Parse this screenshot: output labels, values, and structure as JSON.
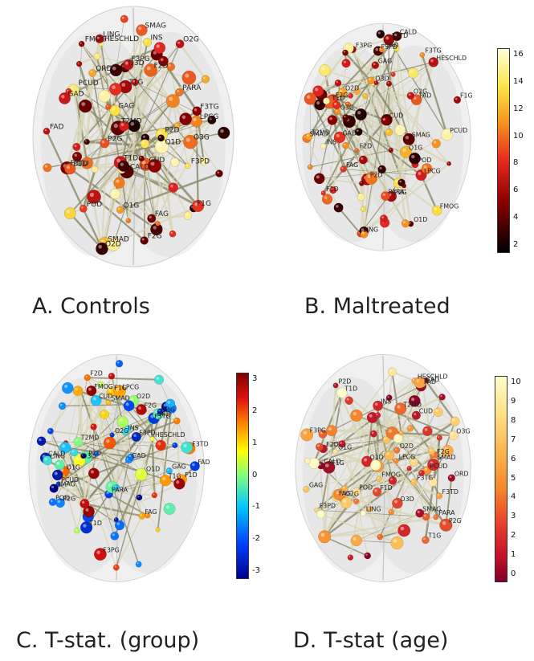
{
  "panels": [
    {
      "id": "A",
      "caption": "A. Controls",
      "colormap": "hot",
      "colorbar": null
    },
    {
      "id": "B",
      "caption": "B. Maltreated",
      "colormap": "hot",
      "colorbar": {
        "ticks": [
          "16",
          "14",
          "12",
          "10",
          "8",
          "6",
          "4",
          "2"
        ]
      }
    },
    {
      "id": "C",
      "caption": "C. T-stat. (group)",
      "colormap": "jet",
      "colorbar": {
        "ticks": [
          "3",
          "2",
          "1",
          "0",
          "-1",
          "-2",
          "-3"
        ]
      }
    },
    {
      "id": "D",
      "caption": "D. T-stat (age)",
      "colormap": "ylorrd",
      "colorbar": {
        "ticks": [
          "10",
          "9",
          "8",
          "7",
          "6",
          "5",
          "4",
          "3",
          "2",
          "1",
          "0"
        ]
      }
    }
  ],
  "region_labels": [
    "FMOG",
    "F2G",
    "F2D",
    "F3TG",
    "F3TD",
    "F1G",
    "F1D",
    "F3PG",
    "F3PD",
    "INS",
    "SMAG",
    "SMAD",
    "ORD",
    "FAG",
    "FAD",
    "HESCHLD",
    "T1G",
    "T1D",
    "T2MD",
    "LPCG",
    "P2G",
    "P2D",
    "GAG",
    "GAD",
    "PCUD",
    "POD",
    "O1G",
    "O1D",
    "O2G",
    "O2D",
    "O3G",
    "O3D",
    "CALD",
    "CUD",
    "LING",
    "PARA"
  ],
  "colors": {
    "hot_low": "#1a0000",
    "hot_mid": "#e02020",
    "hot_high": "#fff8d0",
    "jet_low": "#000080",
    "jet_high": "#800000"
  }
}
